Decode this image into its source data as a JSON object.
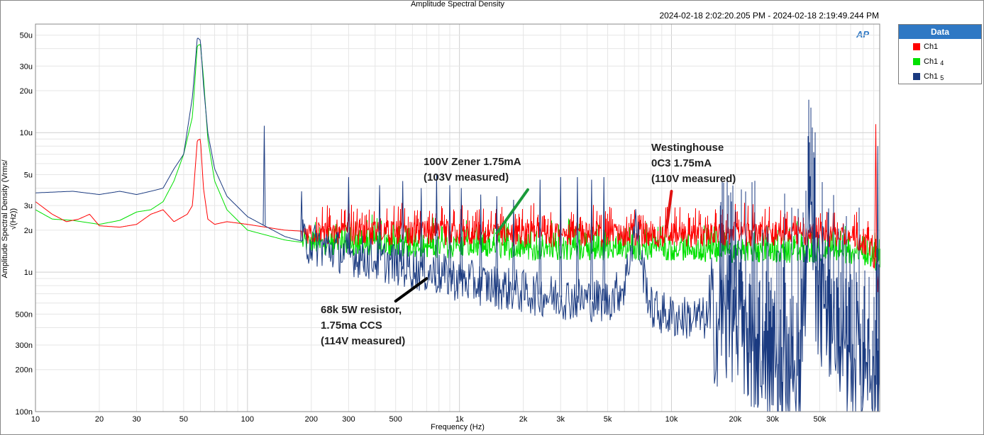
{
  "chart_data": {
    "type": "line",
    "title": "Amplitude Spectral Density",
    "subtitle": "2024-02-18 2:02:20.205 PM - 2024-02-18 2:19:49.244 PM",
    "xlabel": "Frequency (Hz)",
    "ylabel": "Amplitude Spectral Density (Vrms/√(Hz))",
    "xscale": "log",
    "yscale": "log",
    "xlim": [
      10,
      96000
    ],
    "ylim": [
      1e-07,
      6e-05
    ],
    "x_ticks": [
      {
        "v": 10,
        "label": "10"
      },
      {
        "v": 20,
        "label": "20"
      },
      {
        "v": 30,
        "label": "30"
      },
      {
        "v": 50,
        "label": "50"
      },
      {
        "v": 100,
        "label": "100"
      },
      {
        "v": 200,
        "label": "200"
      },
      {
        "v": 300,
        "label": "300"
      },
      {
        "v": 500,
        "label": "500"
      },
      {
        "v": 1000,
        "label": "1k"
      },
      {
        "v": 2000,
        "label": "2k"
      },
      {
        "v": 3000,
        "label": "3k"
      },
      {
        "v": 5000,
        "label": "5k"
      },
      {
        "v": 10000,
        "label": "10k"
      },
      {
        "v": 20000,
        "label": "20k"
      },
      {
        "v": 30000,
        "label": "30k"
      },
      {
        "v": 50000,
        "label": "50k"
      }
    ],
    "y_ticks": [
      {
        "v": 1e-07,
        "label": "100n"
      },
      {
        "v": 2e-07,
        "label": "200n"
      },
      {
        "v": 3e-07,
        "label": "300n"
      },
      {
        "v": 5e-07,
        "label": "500n"
      },
      {
        "v": 1e-06,
        "label": "1u"
      },
      {
        "v": 2e-06,
        "label": "2u"
      },
      {
        "v": 3e-06,
        "label": "3u"
      },
      {
        "v": 5e-06,
        "label": "5u"
      },
      {
        "v": 1e-05,
        "label": "10u"
      },
      {
        "v": 2e-05,
        "label": "20u"
      },
      {
        "v": 3e-05,
        "label": "30u"
      },
      {
        "v": 5e-05,
        "label": "50u"
      }
    ],
    "grid": true,
    "legend_title": "Data",
    "legend_position": "top-right outside",
    "series": [
      {
        "name": "Ch1",
        "suffix": "",
        "color": "#ff0000",
        "points": [
          [
            10,
            3.2e-06
          ],
          [
            12,
            2.6e-06
          ],
          [
            14,
            2.3e-06
          ],
          [
            16,
            2.4e-06
          ],
          [
            18,
            2.6e-06
          ],
          [
            20,
            2.15e-06
          ],
          [
            25,
            2.1e-06
          ],
          [
            30,
            2.2e-06
          ],
          [
            35,
            2.6e-06
          ],
          [
            40,
            2.8e-06
          ],
          [
            45,
            2.3e-06
          ],
          [
            52,
            2.6e-06
          ],
          [
            55,
            3e-06
          ],
          [
            58,
            8.8e-06
          ],
          [
            60,
            9e-06
          ],
          [
            62,
            4e-06
          ],
          [
            65,
            2.4e-06
          ],
          [
            70,
            2.2e-06
          ],
          [
            80,
            2.3e-06
          ],
          [
            100,
            2.2e-06
          ],
          [
            150,
            2e-06
          ],
          [
            200,
            1.95e-06
          ],
          [
            500,
            1.9e-06
          ],
          [
            1000,
            1.9e-06
          ],
          [
            2000,
            1.85e-06
          ],
          [
            5000,
            1.85e-06
          ],
          [
            10000,
            1.85e-06
          ],
          [
            20000,
            1.85e-06
          ],
          [
            40000,
            1.85e-06
          ],
          [
            60000,
            1.8e-06
          ],
          [
            75000,
            1.75e-06
          ],
          [
            85000,
            1.6e-06
          ],
          [
            92000,
            1.2e-06
          ],
          [
            96000,
            6e-07
          ]
        ],
        "spikes": [
          [
            92000,
            1.15e-05
          ]
        ]
      },
      {
        "name": "Ch1",
        "suffix": "4",
        "color": "#00e000",
        "points": [
          [
            10,
            2.8e-06
          ],
          [
            12,
            2.4e-06
          ],
          [
            15,
            2.35e-06
          ],
          [
            20,
            2.2e-06
          ],
          [
            25,
            2.35e-06
          ],
          [
            30,
            2.7e-06
          ],
          [
            35,
            2.8e-06
          ],
          [
            40,
            3.2e-06
          ],
          [
            45,
            4.5e-06
          ],
          [
            50,
            7e-06
          ],
          [
            55,
            1.3e-05
          ],
          [
            58,
            4.2e-05
          ],
          [
            60,
            4.3e-05
          ],
          [
            62,
            2.5e-05
          ],
          [
            65,
            9e-06
          ],
          [
            70,
            4.5e-06
          ],
          [
            80,
            2.8e-06
          ],
          [
            100,
            2e-06
          ],
          [
            150,
            1.7e-06
          ],
          [
            200,
            1.6e-06
          ],
          [
            500,
            1.55e-06
          ],
          [
            1000,
            1.5e-06
          ],
          [
            2000,
            1.45e-06
          ],
          [
            5000,
            1.45e-06
          ],
          [
            10000,
            1.45e-06
          ],
          [
            20000,
            1.4e-06
          ],
          [
            40000,
            1.4e-06
          ],
          [
            60000,
            1.4e-06
          ],
          [
            80000,
            1.35e-06
          ],
          [
            96000,
            1.2e-06
          ]
        ],
        "spikes": []
      },
      {
        "name": "Ch1",
        "suffix": "5",
        "color": "#1a3a80",
        "points": [
          [
            10,
            3.7e-06
          ],
          [
            15,
            3.8e-06
          ],
          [
            20,
            3.6e-06
          ],
          [
            25,
            3.8e-06
          ],
          [
            30,
            3.6e-06
          ],
          [
            35,
            3.8e-06
          ],
          [
            40,
            4e-06
          ],
          [
            45,
            5.5e-06
          ],
          [
            50,
            7e-06
          ],
          [
            55,
            1.8e-05
          ],
          [
            58,
            4.8e-05
          ],
          [
            60,
            4.6e-05
          ],
          [
            62,
            2.2e-05
          ],
          [
            65,
            1e-05
          ],
          [
            70,
            5.5e-06
          ],
          [
            80,
            3.5e-06
          ],
          [
            100,
            2.5e-06
          ],
          [
            150,
            1.8e-06
          ],
          [
            200,
            1.6e-06
          ],
          [
            300,
            1.35e-06
          ],
          [
            500,
            1.15e-06
          ],
          [
            1000,
            8.8e-07
          ],
          [
            2000,
            7.2e-07
          ],
          [
            3000,
            6.6e-07
          ],
          [
            5000,
            6.2e-07
          ],
          [
            6000,
            8e-07
          ],
          [
            6800,
            2.3e-06
          ],
          [
            7200,
            1.2e-06
          ],
          [
            8000,
            5.5e-07
          ],
          [
            10000,
            4.8e-07
          ],
          [
            15000,
            4.6e-07
          ],
          [
            20000,
            4.2e-07
          ],
          [
            25000,
            3e-07
          ],
          [
            30000,
            2.5e-07
          ],
          [
            35000,
            2.2e-07
          ],
          [
            40000,
            2e-07
          ],
          [
            45000,
            1.9e-06
          ],
          [
            50000,
            6e-07
          ],
          [
            60000,
            3.5e-07
          ],
          [
            70000,
            2.5e-07
          ],
          [
            80000,
            1.9e-07
          ],
          [
            90000,
            1.7e-07
          ],
          [
            96000,
            1.5e-07
          ]
        ],
        "spikes": [
          [
            120,
            1.12e-05
          ],
          [
            180,
            3.8e-06
          ],
          [
            300,
            4.8e-06
          ],
          [
            420,
            4.2e-06
          ],
          [
            540,
            4.5e-06
          ],
          [
            660,
            4e-06
          ],
          [
            780,
            5e-06
          ],
          [
            900,
            4.2e-06
          ],
          [
            1020,
            4e-06
          ],
          [
            1260,
            3.6e-06
          ],
          [
            1500,
            3.5e-06
          ],
          [
            1800,
            3.3e-06
          ],
          [
            2400,
            4.6e-06
          ],
          [
            3000,
            4.8e-06
          ],
          [
            3600,
            4.8e-06
          ],
          [
            4200,
            4.6e-06
          ],
          [
            4800,
            4.8e-06
          ],
          [
            17000,
            3e-06
          ],
          [
            20000,
            2.8e-06
          ],
          [
            45000,
            2.2e-06
          ],
          [
            94000,
            8e-06
          ]
        ]
      }
    ],
    "annotations": [
      {
        "text": "100V Zener 1.75mA\n(103V measured)",
        "color": "#1a9a3a",
        "arrow_from": [
          2100,
          3.9e-06
        ],
        "arrow_to": [
          1500,
          1.9e-06
        ]
      },
      {
        "text": "Westinghouse\n0C3 1.75mA\n(110V measured)",
        "color": "#e01010",
        "arrow_from": [
          10000,
          3.8e-06
        ],
        "arrow_to": [
          9500,
          2.1e-06
        ]
      },
      {
        "text": "68k 5W resistor,\n1.75ma CCS\n(114V measured)",
        "color": "#000000",
        "arrow_from": [
          500,
          6.2e-07
        ],
        "arrow_to": [
          700,
          9e-07
        ]
      }
    ]
  },
  "logo_text": "AP"
}
